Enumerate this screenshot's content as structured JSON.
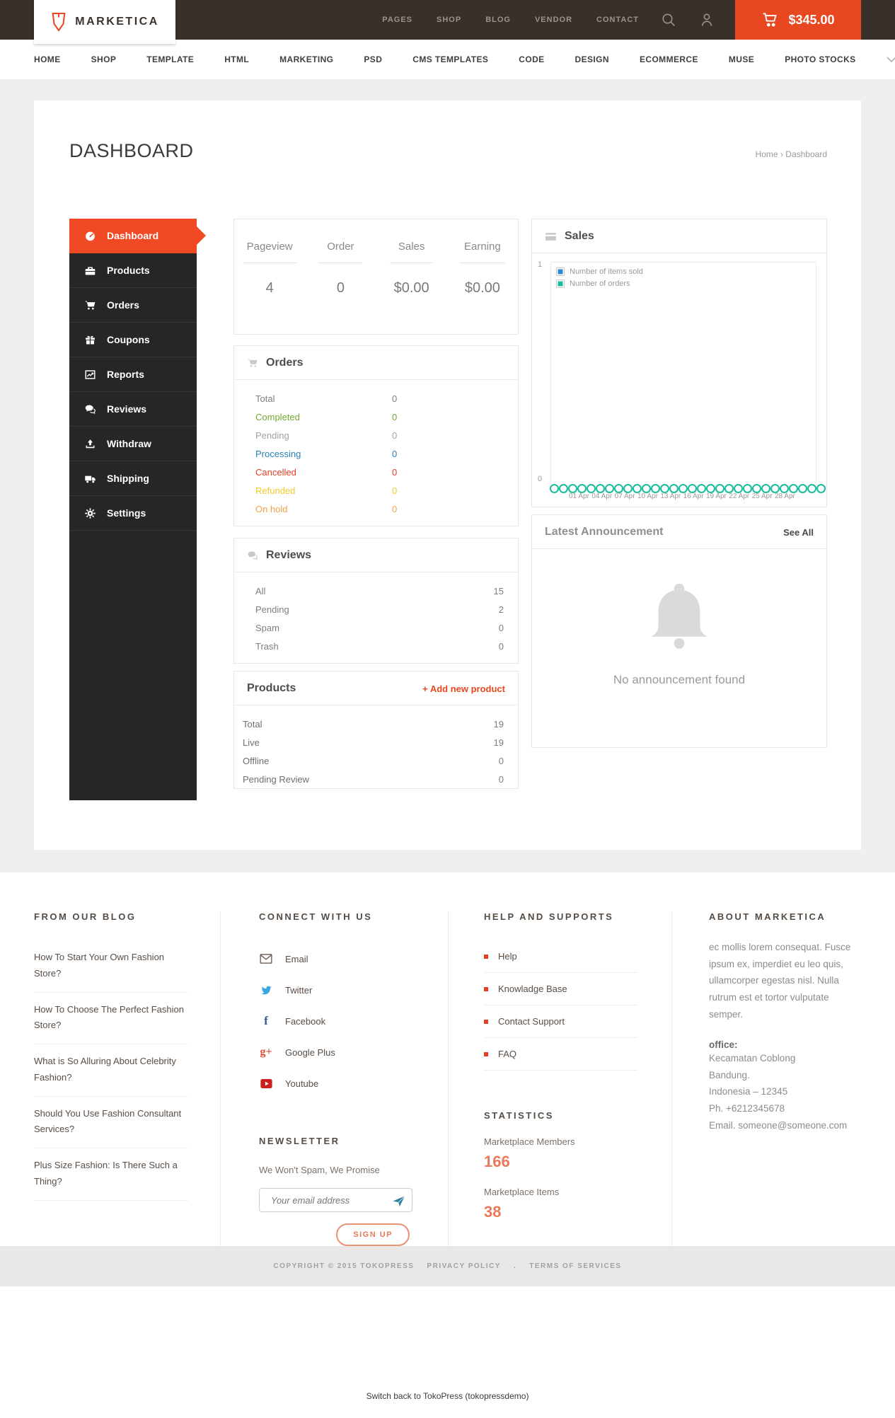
{
  "colors": {
    "accent": "#e8481f",
    "topbar_bg": "#38302b",
    "sidebar_bg": "#262626",
    "active_item": "#ef4a23",
    "salmon": "#e8795a"
  },
  "topbar": {
    "logo_text": "MARKETICA",
    "menu": [
      "PAGES",
      "SHOP",
      "BLOG",
      "VENDOR",
      "CONTACT"
    ],
    "cart_total": "$345.00"
  },
  "navbar": {
    "items": [
      "HOME",
      "SHOP",
      "TEMPLATE",
      "HTML",
      "MARKETING",
      "PSD",
      "CMS TEMPLATES",
      "CODE",
      "DESIGN",
      "ECOMMERCE",
      "MUSE",
      "PHOTO STOCKS"
    ]
  },
  "page": {
    "title": "DASHBOARD",
    "breadcrumb_home": "Home",
    "breadcrumb_sep": "›",
    "breadcrumb_current": "Dashboard"
  },
  "sidebar": {
    "items": [
      {
        "label": "Dashboard"
      },
      {
        "label": "Products"
      },
      {
        "label": "Orders"
      },
      {
        "label": "Coupons"
      },
      {
        "label": "Reports"
      },
      {
        "label": "Reviews"
      },
      {
        "label": "Withdraw"
      },
      {
        "label": "Shipping"
      },
      {
        "label": "Settings"
      }
    ]
  },
  "stats": {
    "columns": [
      {
        "label": "Pageview",
        "value": "4"
      },
      {
        "label": "Order",
        "value": "0"
      },
      {
        "label": "Sales",
        "value": "$0.00"
      },
      {
        "label": "Earning",
        "value": "$0.00"
      }
    ]
  },
  "orders_panel": {
    "title": "Orders",
    "rows": [
      {
        "label": "Total",
        "value": "0",
        "color": "#7e7e7e"
      },
      {
        "label": "Completed",
        "value": "0",
        "color": "#76a72f"
      },
      {
        "label": "Pending",
        "value": "0",
        "color": "#a2a2a2"
      },
      {
        "label": "Processing",
        "value": "0",
        "color": "#2581b5"
      },
      {
        "label": "Cancelled",
        "value": "0",
        "color": "#e2402a"
      },
      {
        "label": "Refunded",
        "value": "0",
        "color": "#efcb2d"
      },
      {
        "label": "On hold",
        "value": "0",
        "color": "#f2a245"
      }
    ]
  },
  "reviews_panel": {
    "title": "Reviews",
    "rows": [
      {
        "label": "All",
        "value": "15"
      },
      {
        "label": "Pending",
        "value": "2"
      },
      {
        "label": "Spam",
        "value": "0"
      },
      {
        "label": "Trash",
        "value": "0"
      }
    ]
  },
  "products_panel": {
    "title": "Products",
    "action": "+ Add new product",
    "rows": [
      {
        "label": "Total",
        "value": "19"
      },
      {
        "label": "Live",
        "value": "19"
      },
      {
        "label": "Offline",
        "value": "0"
      },
      {
        "label": "Pending Review",
        "value": "0"
      }
    ]
  },
  "sales_panel": {
    "title": "Sales"
  },
  "announcement_panel": {
    "title": "Latest Announcement",
    "action": "See All",
    "empty_text": "No announcement found"
  },
  "chart_data": {
    "type": "line",
    "title": "Sales",
    "x": [
      "01 Apr",
      "02 Apr",
      "03 Apr",
      "04 Apr",
      "05 Apr",
      "06 Apr",
      "07 Apr",
      "08 Apr",
      "09 Apr",
      "10 Apr",
      "11 Apr",
      "12 Apr",
      "13 Apr",
      "14 Apr",
      "15 Apr",
      "16 Apr",
      "17 Apr",
      "18 Apr",
      "19 Apr",
      "20 Apr",
      "21 Apr",
      "22 Apr",
      "23 Apr",
      "24 Apr",
      "25 Apr",
      "26 Apr",
      "27 Apr",
      "28 Apr",
      "29 Apr",
      "30 Apr"
    ],
    "x_tick_labels": [
      "01 Apr",
      "04 Apr",
      "07 Apr",
      "10 Apr",
      "13 Apr",
      "16 Apr",
      "19 Apr",
      "22 Apr",
      "25 Apr",
      "28 Apr"
    ],
    "ylim": [
      0,
      1
    ],
    "y_tick_labels": {
      "top": "1",
      "bottom": "0"
    },
    "grid": false,
    "legend_position": "top-left",
    "series": [
      {
        "name": "Number of items sold",
        "color": "#2d89cc",
        "values": [
          0,
          0,
          0,
          0,
          0,
          0,
          0,
          0,
          0,
          0,
          0,
          0,
          0,
          0,
          0,
          0,
          0,
          0,
          0,
          0,
          0,
          0,
          0,
          0,
          0,
          0,
          0,
          0,
          0,
          0
        ]
      },
      {
        "name": "Number of orders",
        "color": "#1abc9c",
        "values": [
          0,
          0,
          0,
          0,
          0,
          0,
          0,
          0,
          0,
          0,
          0,
          0,
          0,
          0,
          0,
          0,
          0,
          0,
          0,
          0,
          0,
          0,
          0,
          0,
          0,
          0,
          0,
          0,
          0,
          0
        ]
      }
    ]
  },
  "footer": {
    "blog": {
      "heading": "FROM OUR BLOG",
      "posts": [
        "How To Start Your Own Fashion Store?",
        "How To Choose The Perfect Fashion Store?",
        "What is So Alluring About Celebrity Fashion?",
        "Should You Use Fashion Consultant Services?",
        "Plus Size Fashion: Is There Such a Thing?"
      ]
    },
    "connect": {
      "heading": "CONNECT WITH US",
      "links": [
        {
          "label": "Email"
        },
        {
          "label": "Twitter"
        },
        {
          "label": "Facebook"
        },
        {
          "label": "Google Plus"
        },
        {
          "label": "Youtube"
        }
      ]
    },
    "newsletter": {
      "heading": "NEWSLETTER",
      "tagline": "We Won't Spam, We Promise",
      "placeholder": "Your email address",
      "button": "SIGN UP"
    },
    "help": {
      "heading": "HELP AND SUPPORTS",
      "links": [
        "Help",
        "Knowladge Base",
        "Contact Support",
        "FAQ"
      ]
    },
    "statistics": {
      "heading": "STATISTICS",
      "items": [
        {
          "label": "Marketplace Members",
          "value": "166"
        },
        {
          "label": "Marketplace Items",
          "value": "38"
        }
      ]
    },
    "about": {
      "heading": "ABOUT MARKETICA",
      "text": "ec mollis lorem consequat. Fusce ipsum ex, imperdiet eu leo quis, ullamcorper egestas nisl. Nulla rutrum est et tortor vulputate semper.",
      "office_label": "office:",
      "office_lines": [
        "Kecamatan Coblong",
        "Bandung.",
        "Indonesia – 12345",
        "Ph. +6212345678",
        "Email. someone@someone.com"
      ]
    }
  },
  "copyright": {
    "text": "COPYRIGHT © 2015 TOKOPRESS",
    "privacy": "PRIVACY POLICY",
    "sep": ".",
    "terms": "TERMS OF SERVICES"
  },
  "switch_bar": {
    "label": "Switch back to TokoPress (tokopressdemo)"
  }
}
